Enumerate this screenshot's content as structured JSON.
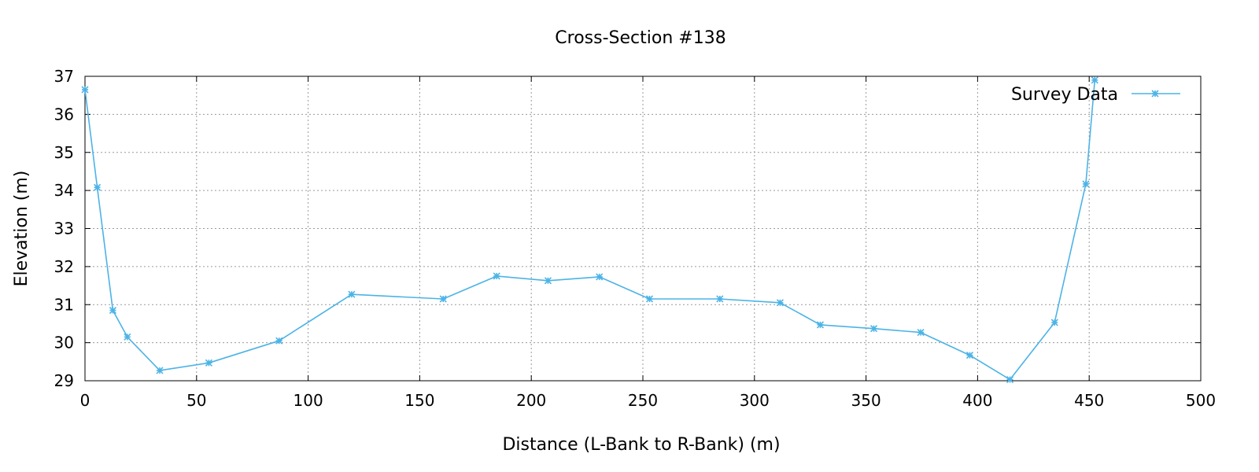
{
  "chart_data": {
    "type": "line",
    "title": "Cross-Section #138",
    "xlabel": "Distance (L-Bank to R-Bank) (m)",
    "ylabel": "Elevation (m)",
    "xlim": [
      0,
      500
    ],
    "ylim": [
      29,
      37
    ],
    "xticks": [
      0,
      50,
      100,
      150,
      200,
      250,
      300,
      350,
      400,
      450,
      500
    ],
    "yticks": [
      29,
      30,
      31,
      32,
      33,
      34,
      35,
      36,
      37
    ],
    "grid": true,
    "legend_position": "top-right",
    "series": [
      {
        "name": "Survey Data",
        "color": "#4cb3e6",
        "marker": "asterisk",
        "points": [
          {
            "x": 0,
            "y": 36.65
          },
          {
            "x": 5.5,
            "y": 34.08
          },
          {
            "x": 12.5,
            "y": 30.85
          },
          {
            "x": 19,
            "y": 30.15
          },
          {
            "x": 33.5,
            "y": 29.27
          },
          {
            "x": 55.5,
            "y": 29.47
          },
          {
            "x": 87,
            "y": 30.05
          },
          {
            "x": 119.5,
            "y": 31.27
          },
          {
            "x": 160.5,
            "y": 31.15
          },
          {
            "x": 184.5,
            "y": 31.75
          },
          {
            "x": 207.5,
            "y": 31.63
          },
          {
            "x": 230.5,
            "y": 31.73
          },
          {
            "x": 253,
            "y": 31.15
          },
          {
            "x": 284.5,
            "y": 31.15
          },
          {
            "x": 311.5,
            "y": 31.05
          },
          {
            "x": 329.5,
            "y": 30.47
          },
          {
            "x": 353.5,
            "y": 30.37
          },
          {
            "x": 374.5,
            "y": 30.27
          },
          {
            "x": 396.5,
            "y": 29.67
          },
          {
            "x": 414.5,
            "y": 29.03
          },
          {
            "x": 434.5,
            "y": 30.53
          },
          {
            "x": 448.5,
            "y": 34.17
          },
          {
            "x": 452.5,
            "y": 36.9
          }
        ]
      }
    ]
  }
}
